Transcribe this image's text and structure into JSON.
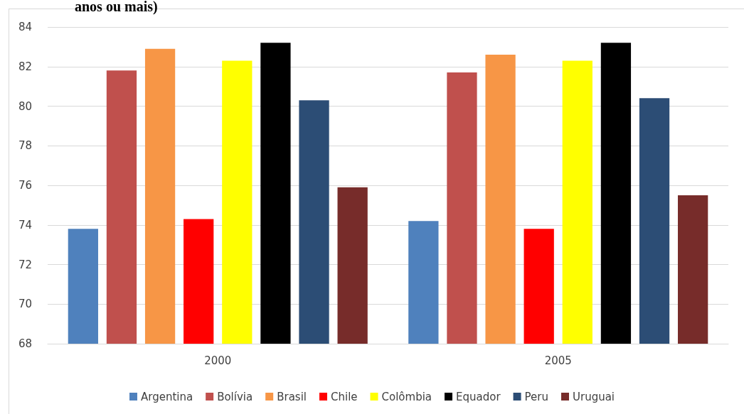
{
  "chart_data": {
    "type": "bar",
    "title": "anos ou mais)",
    "categories": [
      "2000",
      "2005"
    ],
    "series": [
      {
        "name": "Argentina",
        "color": "#4f81bd",
        "values": [
          73.8,
          74.2
        ]
      },
      {
        "name": "Bolívia",
        "color": "#c0504d",
        "values": [
          81.8,
          81.7
        ]
      },
      {
        "name": "Brasil",
        "color": "#f79646",
        "values": [
          82.9,
          82.6
        ]
      },
      {
        "name": "Chile",
        "color": "#ff0000",
        "values": [
          74.3,
          73.8
        ]
      },
      {
        "name": "Colômbia",
        "color": "#ffff00",
        "values": [
          82.3,
          82.3
        ]
      },
      {
        "name": "Equador",
        "color": "#000000",
        "values": [
          83.2,
          83.2
        ]
      },
      {
        "name": "Peru",
        "color": "#2c4d75",
        "values": [
          80.3,
          80.4
        ]
      },
      {
        "name": "Uruguai",
        "color": "#772c2a",
        "values": [
          75.9,
          75.5
        ]
      }
    ],
    "ylim": [
      68,
      84
    ],
    "yticks": [
      68,
      70,
      72,
      74,
      76,
      78,
      80,
      82,
      84
    ],
    "grid": "y",
    "legend": "bottom"
  }
}
